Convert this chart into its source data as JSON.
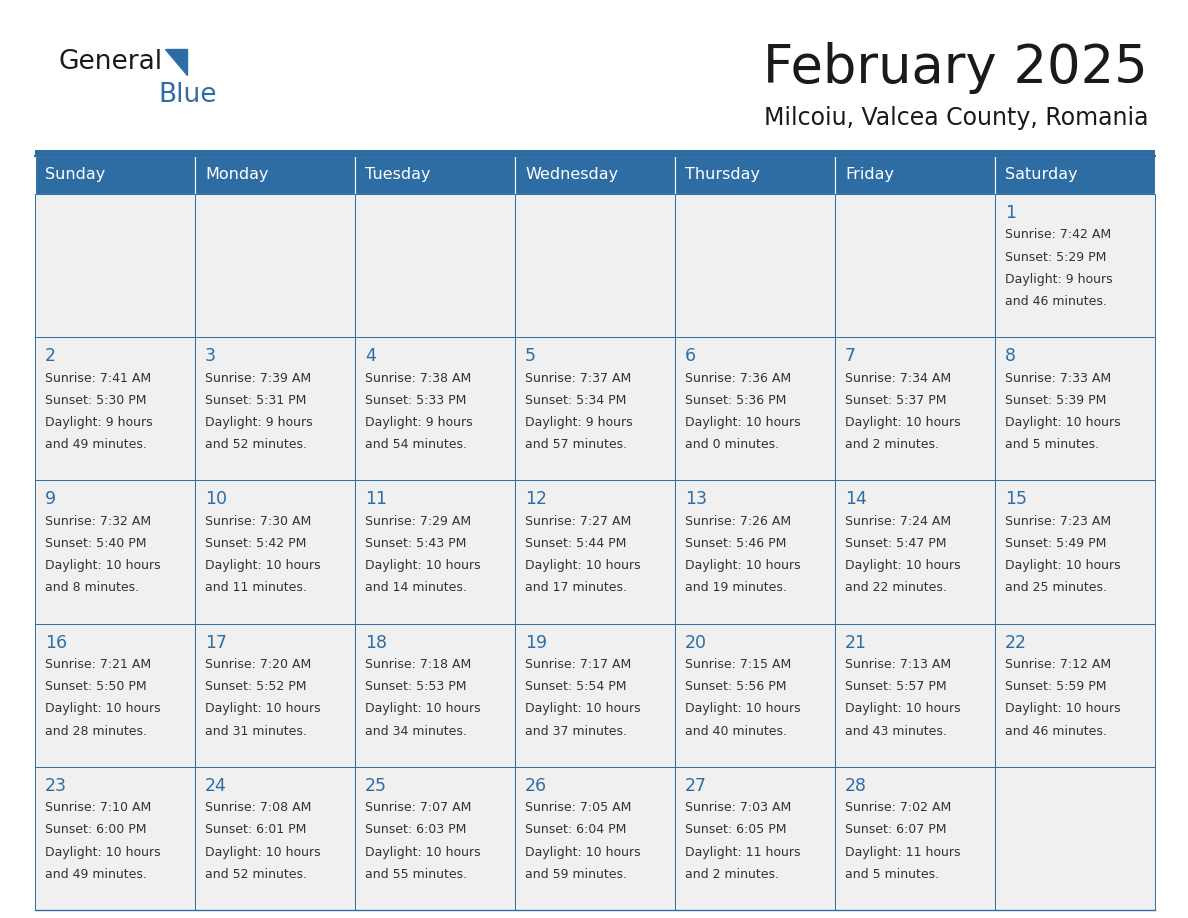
{
  "title": "February 2025",
  "subtitle": "Milcoiu, Valcea County, Romania",
  "header_bg": "#2E6DA4",
  "header_text": "#FFFFFF",
  "cell_bg": "#F0F0F0",
  "border_color": "#2E6DA4",
  "title_color": "#1a1a1a",
  "subtitle_color": "#1a1a1a",
  "day_num_color": "#2E6DA4",
  "cell_text_color": "#333333",
  "day_headers": [
    "Sunday",
    "Monday",
    "Tuesday",
    "Wednesday",
    "Thursday",
    "Friday",
    "Saturday"
  ],
  "calendar": [
    [
      null,
      null,
      null,
      null,
      null,
      null,
      {
        "day": "1",
        "sunrise": "7:42 AM",
        "sunset": "5:29 PM",
        "daylight_h": "9 hours",
        "daylight_m": "and 46 minutes."
      }
    ],
    [
      {
        "day": "2",
        "sunrise": "7:41 AM",
        "sunset": "5:30 PM",
        "daylight_h": "9 hours",
        "daylight_m": "and 49 minutes."
      },
      {
        "day": "3",
        "sunrise": "7:39 AM",
        "sunset": "5:31 PM",
        "daylight_h": "9 hours",
        "daylight_m": "and 52 minutes."
      },
      {
        "day": "4",
        "sunrise": "7:38 AM",
        "sunset": "5:33 PM",
        "daylight_h": "9 hours",
        "daylight_m": "and 54 minutes."
      },
      {
        "day": "5",
        "sunrise": "7:37 AM",
        "sunset": "5:34 PM",
        "daylight_h": "9 hours",
        "daylight_m": "and 57 minutes."
      },
      {
        "day": "6",
        "sunrise": "7:36 AM",
        "sunset": "5:36 PM",
        "daylight_h": "10 hours",
        "daylight_m": "and 0 minutes."
      },
      {
        "day": "7",
        "sunrise": "7:34 AM",
        "sunset": "5:37 PM",
        "daylight_h": "10 hours",
        "daylight_m": "and 2 minutes."
      },
      {
        "day": "8",
        "sunrise": "7:33 AM",
        "sunset": "5:39 PM",
        "daylight_h": "10 hours",
        "daylight_m": "and 5 minutes."
      }
    ],
    [
      {
        "day": "9",
        "sunrise": "7:32 AM",
        "sunset": "5:40 PM",
        "daylight_h": "10 hours",
        "daylight_m": "and 8 minutes."
      },
      {
        "day": "10",
        "sunrise": "7:30 AM",
        "sunset": "5:42 PM",
        "daylight_h": "10 hours",
        "daylight_m": "and 11 minutes."
      },
      {
        "day": "11",
        "sunrise": "7:29 AM",
        "sunset": "5:43 PM",
        "daylight_h": "10 hours",
        "daylight_m": "and 14 minutes."
      },
      {
        "day": "12",
        "sunrise": "7:27 AM",
        "sunset": "5:44 PM",
        "daylight_h": "10 hours",
        "daylight_m": "and 17 minutes."
      },
      {
        "day": "13",
        "sunrise": "7:26 AM",
        "sunset": "5:46 PM",
        "daylight_h": "10 hours",
        "daylight_m": "and 19 minutes."
      },
      {
        "day": "14",
        "sunrise": "7:24 AM",
        "sunset": "5:47 PM",
        "daylight_h": "10 hours",
        "daylight_m": "and 22 minutes."
      },
      {
        "day": "15",
        "sunrise": "7:23 AM",
        "sunset": "5:49 PM",
        "daylight_h": "10 hours",
        "daylight_m": "and 25 minutes."
      }
    ],
    [
      {
        "day": "16",
        "sunrise": "7:21 AM",
        "sunset": "5:50 PM",
        "daylight_h": "10 hours",
        "daylight_m": "and 28 minutes."
      },
      {
        "day": "17",
        "sunrise": "7:20 AM",
        "sunset": "5:52 PM",
        "daylight_h": "10 hours",
        "daylight_m": "and 31 minutes."
      },
      {
        "day": "18",
        "sunrise": "7:18 AM",
        "sunset": "5:53 PM",
        "daylight_h": "10 hours",
        "daylight_m": "and 34 minutes."
      },
      {
        "day": "19",
        "sunrise": "7:17 AM",
        "sunset": "5:54 PM",
        "daylight_h": "10 hours",
        "daylight_m": "and 37 minutes."
      },
      {
        "day": "20",
        "sunrise": "7:15 AM",
        "sunset": "5:56 PM",
        "daylight_h": "10 hours",
        "daylight_m": "and 40 minutes."
      },
      {
        "day": "21",
        "sunrise": "7:13 AM",
        "sunset": "5:57 PM",
        "daylight_h": "10 hours",
        "daylight_m": "and 43 minutes."
      },
      {
        "day": "22",
        "sunrise": "7:12 AM",
        "sunset": "5:59 PM",
        "daylight_h": "10 hours",
        "daylight_m": "and 46 minutes."
      }
    ],
    [
      {
        "day": "23",
        "sunrise": "7:10 AM",
        "sunset": "6:00 PM",
        "daylight_h": "10 hours",
        "daylight_m": "and 49 minutes."
      },
      {
        "day": "24",
        "sunrise": "7:08 AM",
        "sunset": "6:01 PM",
        "daylight_h": "10 hours",
        "daylight_m": "and 52 minutes."
      },
      {
        "day": "25",
        "sunrise": "7:07 AM",
        "sunset": "6:03 PM",
        "daylight_h": "10 hours",
        "daylight_m": "and 55 minutes."
      },
      {
        "day": "26",
        "sunrise": "7:05 AM",
        "sunset": "6:04 PM",
        "daylight_h": "10 hours",
        "daylight_m": "and 59 minutes."
      },
      {
        "day": "27",
        "sunrise": "7:03 AM",
        "sunset": "6:05 PM",
        "daylight_h": "11 hours",
        "daylight_m": "and 2 minutes."
      },
      {
        "day": "28",
        "sunrise": "7:02 AM",
        "sunset": "6:07 PM",
        "daylight_h": "11 hours",
        "daylight_m": "and 5 minutes."
      },
      null
    ]
  ],
  "logo_general_color": "#1a1a1a",
  "logo_blue_color": "#2E6DA4",
  "logo_triangle_color": "#2E6DA4"
}
